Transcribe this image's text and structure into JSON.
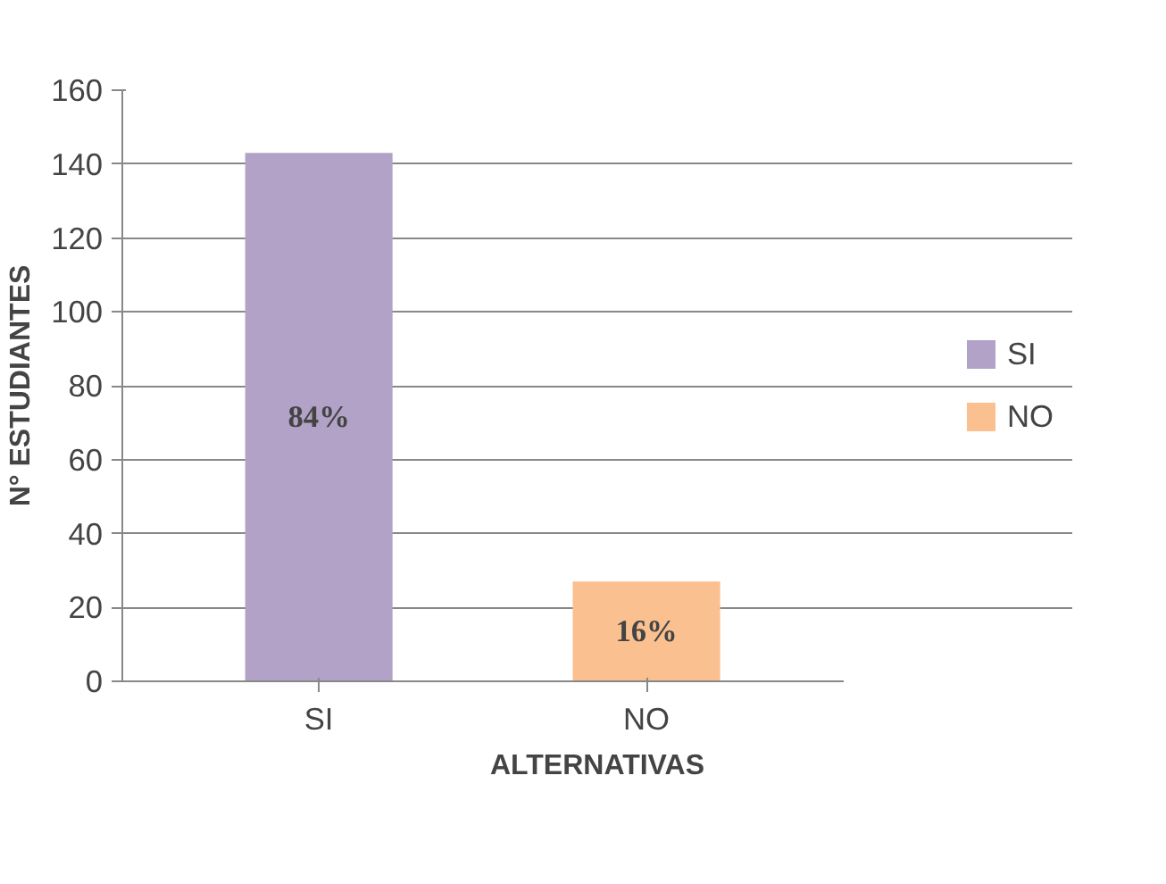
{
  "chart_data": {
    "type": "bar",
    "xlabel": "ALTERNATIVAS",
    "ylabel": "N° ESTUDIANTES",
    "categories": [
      "SI",
      "NO"
    ],
    "series": [
      {
        "name": "SI",
        "color": "#b3a2c7",
        "values": [
          143,
          null
        ]
      },
      {
        "name": "NO",
        "color": "#fac090",
        "values": [
          null,
          27
        ]
      }
    ],
    "annotations": [
      "84%",
      "16%"
    ],
    "ylim": [
      0,
      160
    ],
    "yticks": [
      0,
      20,
      40,
      60,
      80,
      100,
      120,
      140,
      160
    ],
    "grid": "y",
    "legend": "right"
  }
}
